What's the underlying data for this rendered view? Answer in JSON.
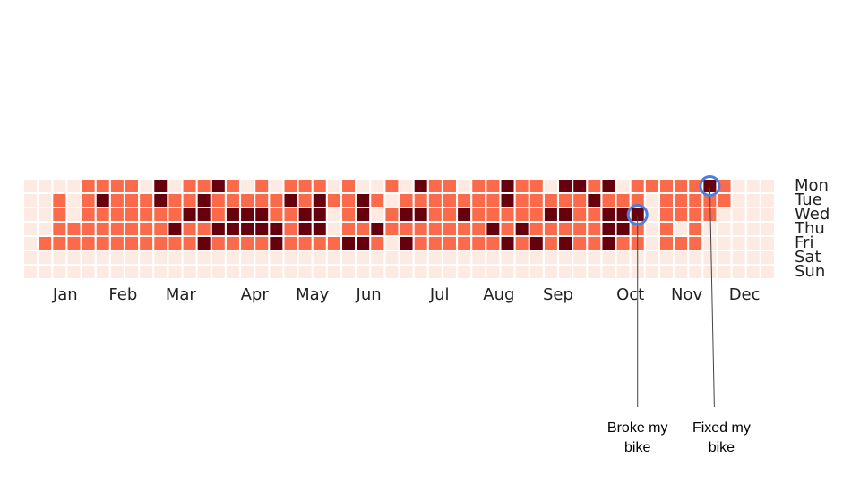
{
  "chart_data": {
    "type": "heatmap",
    "y_categories": [
      "Mon",
      "Tue",
      "Wed",
      "Thu",
      "Fri",
      "Sat",
      "Sun"
    ],
    "xlim": [
      0,
      52
    ],
    "xticks": [
      {
        "value": 2.4,
        "label": "Jan"
      },
      {
        "value": 6.4,
        "label": "Feb"
      },
      {
        "value": 10.4,
        "label": "Mar"
      },
      {
        "value": 15.5,
        "label": "Apr"
      },
      {
        "value": 19.5,
        "label": "May"
      },
      {
        "value": 23.4,
        "label": "Jun"
      },
      {
        "value": 28.3,
        "label": "Jul"
      },
      {
        "value": 32.4,
        "label": "Aug"
      },
      {
        "value": 36.5,
        "label": "Sep"
      },
      {
        "value": 41.5,
        "label": "Oct"
      },
      {
        "value": 45.4,
        "label": "Nov"
      },
      {
        "value": 49.4,
        "label": "Dec"
      }
    ],
    "colors": [
      "#fdebe3",
      "#fb6a4a",
      "#67000d"
    ],
    "values": [
      [
        0,
        0,
        0,
        0,
        1,
        1,
        1,
        1,
        0,
        2,
        0,
        1,
        1,
        2,
        1,
        0,
        1,
        0,
        1,
        1,
        1,
        0,
        1,
        0,
        0,
        1,
        0,
        2,
        1,
        1,
        0,
        1,
        1,
        2,
        1,
        1,
        0,
        2,
        2,
        1,
        2,
        0,
        1,
        1,
        1,
        1,
        1,
        2,
        1,
        0,
        0,
        0
      ],
      [
        0,
        0,
        1,
        0,
        1,
        2,
        1,
        1,
        1,
        2,
        1,
        1,
        2,
        1,
        1,
        1,
        1,
        1,
        2,
        1,
        2,
        1,
        1,
        2,
        1,
        0,
        1,
        1,
        1,
        1,
        1,
        1,
        1,
        2,
        1,
        1,
        1,
        1,
        1,
        2,
        1,
        1,
        1,
        0,
        1,
        1,
        1,
        1,
        1,
        0,
        0,
        0
      ],
      [
        0,
        0,
        1,
        0,
        1,
        1,
        1,
        1,
        1,
        1,
        1,
        2,
        2,
        1,
        2,
        2,
        2,
        1,
        1,
        2,
        2,
        0,
        1,
        2,
        0,
        1,
        2,
        2,
        1,
        1,
        2,
        1,
        1,
        1,
        1,
        1,
        2,
        2,
        1,
        1,
        2,
        2,
        2,
        0,
        1,
        1,
        1,
        1,
        0,
        0,
        0,
        0
      ],
      [
        0,
        0,
        1,
        1,
        1,
        1,
        1,
        1,
        1,
        1,
        2,
        1,
        1,
        2,
        2,
        2,
        2,
        2,
        1,
        2,
        2,
        0,
        1,
        1,
        2,
        1,
        1,
        1,
        1,
        1,
        1,
        1,
        2,
        1,
        2,
        1,
        1,
        1,
        1,
        1,
        2,
        2,
        1,
        0,
        1,
        0,
        1,
        0,
        0,
        0,
        0,
        0
      ],
      [
        0,
        1,
        1,
        1,
        1,
        1,
        1,
        1,
        1,
        1,
        1,
        1,
        2,
        1,
        1,
        1,
        1,
        2,
        1,
        1,
        1,
        1,
        2,
        2,
        1,
        0,
        2,
        1,
        1,
        1,
        1,
        1,
        1,
        2,
        1,
        2,
        1,
        2,
        1,
        1,
        2,
        1,
        1,
        0,
        1,
        1,
        1,
        0,
        0,
        0,
        0,
        0
      ],
      [
        0,
        0,
        0,
        0,
        0,
        0,
        0,
        0,
        0,
        0,
        0,
        0,
        0,
        0,
        0,
        0,
        0,
        0,
        0,
        0,
        0,
        0,
        0,
        0,
        0,
        0,
        0,
        0,
        0,
        0,
        0,
        0,
        0,
        0,
        0,
        0,
        0,
        0,
        0,
        0,
        0,
        0,
        0,
        0,
        0,
        0,
        0,
        0,
        0,
        0,
        0,
        0
      ],
      [
        0,
        0,
        0,
        0,
        0,
        0,
        0,
        0,
        0,
        0,
        0,
        0,
        0,
        0,
        0,
        0,
        0,
        0,
        0,
        0,
        0,
        0,
        0,
        0,
        0,
        0,
        0,
        0,
        0,
        0,
        0,
        0,
        0,
        0,
        0,
        0,
        0,
        0,
        0,
        0,
        0,
        0,
        0,
        0,
        0,
        0,
        0,
        0,
        0,
        0,
        0,
        0
      ]
    ],
    "annotation_color": "#4a7fe0",
    "annotations": [
      {
        "text": "Broke my bike",
        "week": 42,
        "day": 2
      },
      {
        "text": "Fixed my bike",
        "week": 47,
        "day": 0
      }
    ]
  }
}
